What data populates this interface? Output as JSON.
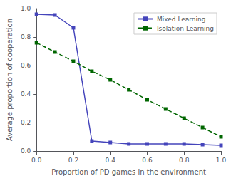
{
  "chart_data": {
    "type": "line",
    "xlabel": "Proportion of PD games in the environment",
    "ylabel": "Average proportion of cooperation",
    "x": [
      0.0,
      0.1,
      0.2,
      0.3,
      0.4,
      0.5,
      0.6,
      0.7,
      0.8,
      0.9,
      1.0
    ],
    "series": [
      {
        "name": "Mixed Learning",
        "color": "#4444bb",
        "marker": "square",
        "line_style": "solid",
        "values": [
          0.96,
          0.955,
          0.865,
          0.07,
          0.06,
          0.05,
          0.05,
          0.05,
          0.05,
          0.045,
          0.04
        ]
      },
      {
        "name": "Isolation Learning",
        "color": "#006600",
        "marker": "square",
        "line_style": "dashed",
        "values": [
          0.76,
          0.695,
          0.63,
          0.56,
          0.5,
          0.43,
          0.36,
          0.295,
          0.23,
          0.165,
          0.1
        ]
      }
    ],
    "xlim": [
      0.0,
      1.0
    ],
    "ylim": [
      0.0,
      1.0
    ],
    "xticks": [
      {
        "value": 0.0,
        "label": "0.0"
      },
      0.2,
      0.4,
      0.6,
      0.8,
      {
        "value": 1.0,
        "label": "1.0"
      }
    ],
    "yticks": [
      {
        "value": 0.0,
        "label": "0.0"
      },
      0.2,
      0.4,
      0.6,
      0.8,
      {
        "value": 1.0,
        "label": "1.0"
      }
    ],
    "legend": "upper right",
    "grid": false
  }
}
